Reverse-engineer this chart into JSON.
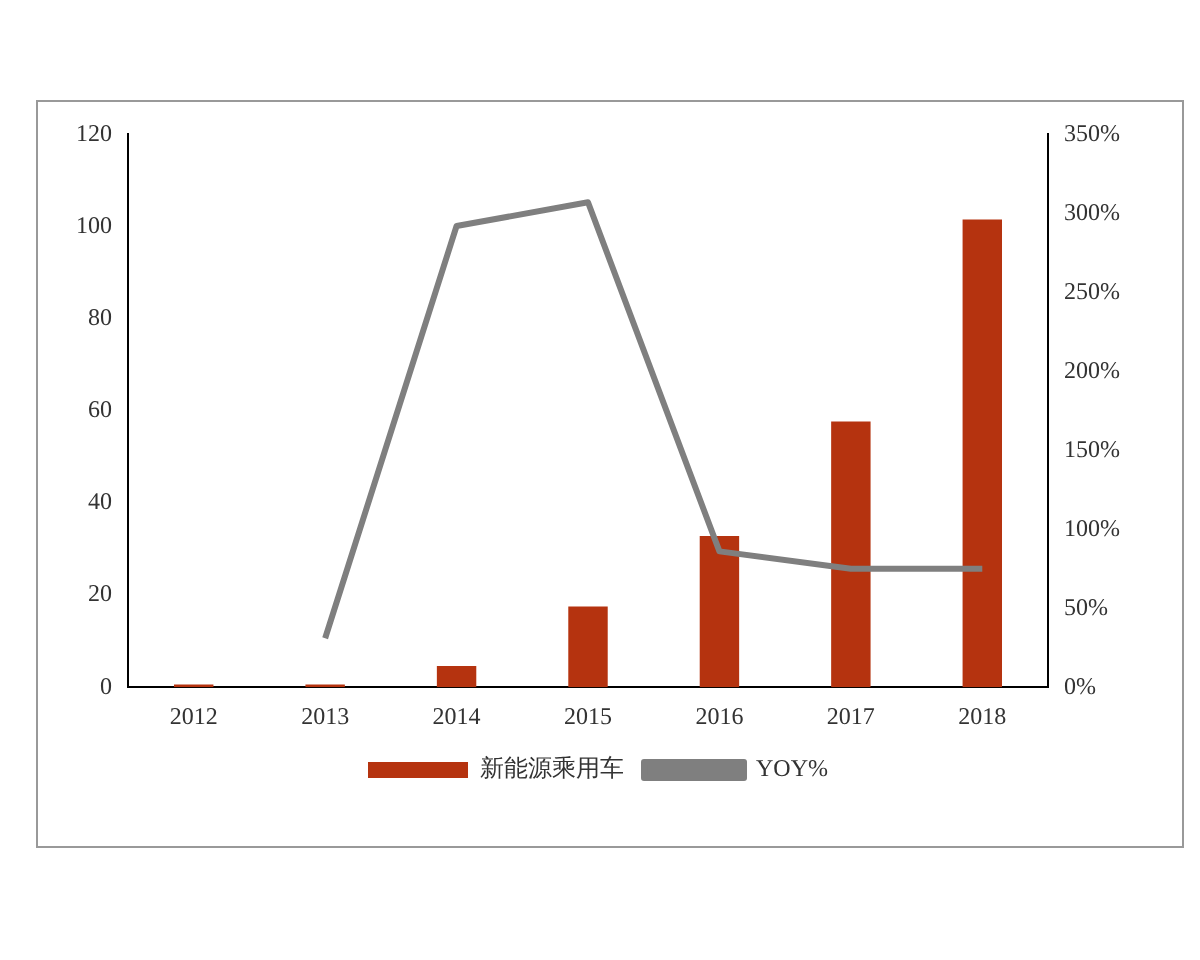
{
  "chart_data": {
    "type": "bar",
    "categories": [
      "2012",
      "2013",
      "2014",
      "2015",
      "2016",
      "2017",
      "2018"
    ],
    "series": [
      {
        "name": "新能源乘用车",
        "color": "#b5330f",
        "values": [
          0.6,
          0.6,
          4.6,
          17.5,
          32.8,
          57.7,
          101.5
        ]
      },
      {
        "name": "YOY%",
        "type": "line",
        "axis": "y2",
        "color": "#7f7f7f",
        "values": [
          null,
          31,
          292,
          307,
          86,
          75,
          75
        ]
      }
    ],
    "ylim": [
      0,
      120
    ],
    "yticks": [
      0,
      20,
      40,
      60,
      80,
      100,
      120
    ],
    "y2lim": [
      0,
      350
    ],
    "y2ticks": [
      {
        "value": 0,
        "label": "0%"
      },
      {
        "value": 50,
        "label": "50%"
      },
      {
        "value": 100,
        "label": "100%"
      },
      {
        "value": 150,
        "label": "150%"
      },
      {
        "value": 200,
        "label": "200%"
      },
      {
        "value": 250,
        "label": "250%"
      },
      {
        "value": 300,
        "label": "300%"
      },
      {
        "value": 350,
        "label": "350%"
      }
    ],
    "grid": false,
    "legend": "bottom",
    "marker": "none"
  }
}
